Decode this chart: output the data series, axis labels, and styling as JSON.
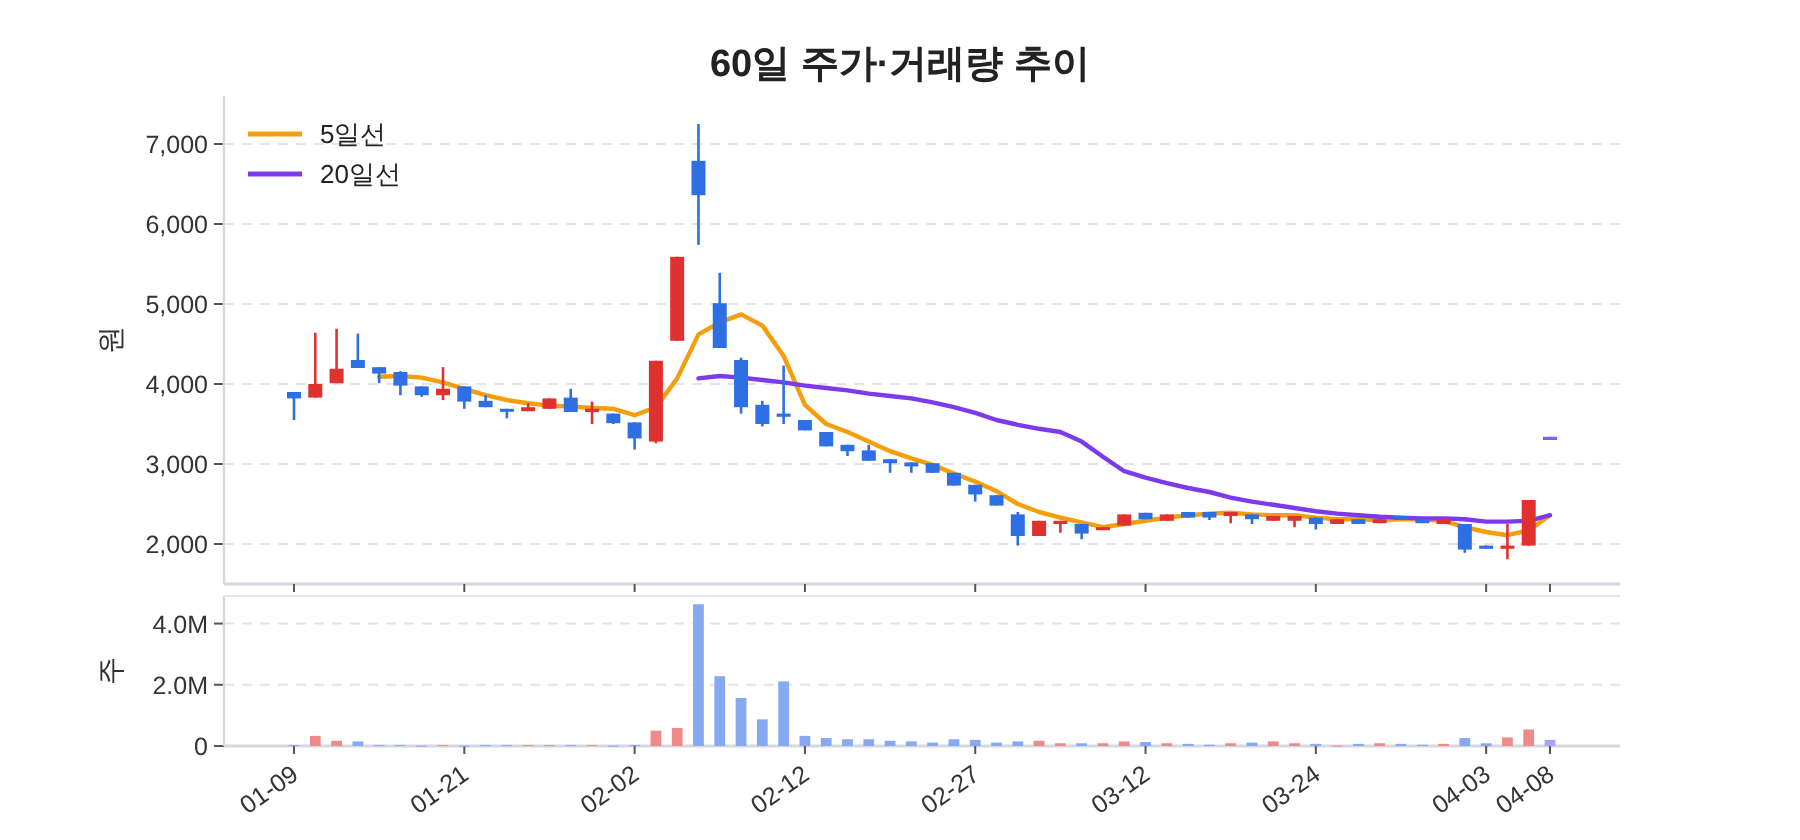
{
  "chart_data": [
    {
      "type": "candlestick",
      "title": "60일 주가·거래량 추이",
      "ylabel": "원",
      "categories": [
        null,
        null,
        null,
        null,
        null,
        null,
        null,
        null,
        null,
        null,
        null,
        null,
        null,
        null,
        null,
        null,
        null,
        null,
        null,
        null,
        null,
        null,
        null,
        null,
        null,
        null,
        null,
        null,
        null,
        null,
        null,
        null,
        null,
        null,
        null,
        null,
        null,
        null,
        null,
        null,
        null,
        null,
        null,
        null,
        null,
        null,
        null,
        null,
        null,
        null,
        null,
        null,
        null,
        null,
        null,
        null,
        null,
        null,
        null,
        null
      ],
      "ohlc": [
        [
          3900,
          3900,
          3550,
          3820
        ],
        [
          3830,
          4640,
          3830,
          4000
        ],
        [
          4010,
          4690,
          4010,
          4190
        ],
        [
          4300,
          4630,
          4200,
          4200
        ],
        [
          4210,
          4210,
          4010,
          4130
        ],
        [
          4150,
          4160,
          3860,
          3980
        ],
        [
          3970,
          3970,
          3840,
          3860
        ],
        [
          3860,
          4210,
          3800,
          3940
        ],
        [
          3970,
          3970,
          3690,
          3780
        ],
        [
          3790,
          3860,
          3710,
          3710
        ],
        [
          3690,
          3690,
          3570,
          3660
        ],
        [
          3660,
          3760,
          3660,
          3710
        ],
        [
          3690,
          3820,
          3690,
          3820
        ],
        [
          3830,
          3940,
          3650,
          3650
        ],
        [
          3650,
          3780,
          3500,
          3690
        ],
        [
          3630,
          3630,
          3500,
          3510
        ],
        [
          3520,
          3520,
          3180,
          3320
        ],
        [
          3280,
          4290,
          3260,
          4290
        ],
        [
          4540,
          5590,
          4540,
          5590
        ],
        [
          6790,
          7250,
          5740,
          6360
        ],
        [
          5010,
          5390,
          4450,
          4450
        ],
        [
          4300,
          4330,
          3630,
          3710
        ],
        [
          3740,
          3790,
          3470,
          3500
        ],
        [
          3630,
          4230,
          3500,
          3590
        ],
        [
          3550,
          3550,
          3420,
          3420
        ],
        [
          3400,
          3400,
          3220,
          3220
        ],
        [
          3240,
          3240,
          3100,
          3160
        ],
        [
          3170,
          3240,
          3040,
          3040
        ],
        [
          3060,
          3060,
          2890,
          3010
        ],
        [
          3020,
          3020,
          2890,
          2970
        ],
        [
          3010,
          3010,
          2890,
          2890
        ],
        [
          2890,
          2890,
          2730,
          2730
        ],
        [
          2740,
          2740,
          2530,
          2620
        ],
        [
          2610,
          2610,
          2480,
          2480
        ],
        [
          2370,
          2400,
          1980,
          2100
        ],
        [
          2100,
          2290,
          2100,
          2290
        ],
        [
          2250,
          2290,
          2140,
          2290
        ],
        [
          2250,
          2250,
          2060,
          2130
        ],
        [
          2180,
          2210,
          2180,
          2210
        ],
        [
          2230,
          2370,
          2230,
          2370
        ],
        [
          2390,
          2390,
          2310,
          2310
        ],
        [
          2290,
          2370,
          2290,
          2370
        ],
        [
          2400,
          2400,
          2330,
          2330
        ],
        [
          2400,
          2400,
          2300,
          2330
        ],
        [
          2350,
          2400,
          2260,
          2400
        ],
        [
          2370,
          2370,
          2250,
          2310
        ],
        [
          2290,
          2350,
          2290,
          2350
        ],
        [
          2290,
          2350,
          2210,
          2350
        ],
        [
          2330,
          2330,
          2180,
          2250
        ],
        [
          2250,
          2310,
          2250,
          2310
        ],
        [
          2310,
          2310,
          2250,
          2250
        ],
        [
          2260,
          2310,
          2260,
          2310
        ],
        [
          2350,
          2350,
          2300,
          2300
        ],
        [
          2310,
          2310,
          2260,
          2260
        ],
        [
          2250,
          2310,
          2250,
          2310
        ],
        [
          2250,
          2250,
          1890,
          1930
        ],
        [
          1980,
          1980,
          1940,
          1940
        ],
        [
          1940,
          2250,
          1810,
          1980
        ],
        [
          1980,
          2550,
          1980,
          2550
        ],
        [
          3340,
          3340,
          3300,
          3300
        ]
      ],
      "colors": [
        "#2f6fe4",
        "#e03131",
        "#e03131",
        "#2f6fe4",
        "#2f6fe4",
        "#2f6fe4",
        "#2f6fe4",
        "#e03131",
        "#2f6fe4",
        "#2f6fe4",
        "#2f6fe4",
        "#e03131",
        "#e03131",
        "#2f6fe4",
        "#e03131",
        "#2f6fe4",
        "#2f6fe4",
        "#e03131",
        "#e03131",
        "#2f6fe4",
        "#2f6fe4",
        "#2f6fe4",
        "#2f6fe4",
        "#2f6fe4",
        "#2f6fe4",
        "#2f6fe4",
        "#2f6fe4",
        "#2f6fe4",
        "#2f6fe4",
        "#2f6fe4",
        "#2f6fe4",
        "#2f6fe4",
        "#2f6fe4",
        "#2f6fe4",
        "#2f6fe4",
        "#e03131",
        "#e03131",
        "#2f6fe4",
        "#e03131",
        "#e03131",
        "#2f6fe4",
        "#e03131",
        "#2f6fe4",
        "#2f6fe4",
        "#e03131",
        "#2f6fe4",
        "#e03131",
        "#e03131",
        "#2f6fe4",
        "#e03131",
        "#2f6fe4",
        "#e03131",
        "#2f6fe4",
        "#2f6fe4",
        "#e03131",
        "#2f6fe4",
        "#2f6fe4",
        "#e03131",
        "#e03131",
        "#6b6bf0"
      ],
      "series": [
        {
          "type": "line",
          "name": "5일선",
          "color": "#f59e0b",
          "values": [
            null,
            null,
            null,
            null,
            4090,
            4100,
            4080,
            4020,
            3940,
            3860,
            3800,
            3760,
            3730,
            3720,
            3700,
            3690,
            3610,
            3710,
            4070,
            4620,
            4770,
            4870,
            4730,
            4350,
            3740,
            3500,
            3400,
            3280,
            3160,
            3070,
            2990,
            2880,
            2780,
            2660,
            2500,
            2400,
            2330,
            2270,
            2210,
            2250,
            2290,
            2330,
            2360,
            2380,
            2390,
            2370,
            2360,
            2360,
            2330,
            2310,
            2310,
            2300,
            2310,
            2310,
            2290,
            2210,
            2150,
            2110,
            2170,
            2360
          ]
        },
        {
          "type": "line",
          "name": "20일선",
          "color": "#7c3aed",
          "values": [
            null,
            null,
            null,
            null,
            null,
            null,
            null,
            null,
            null,
            null,
            null,
            null,
            null,
            null,
            null,
            null,
            null,
            null,
            null,
            4070,
            4100,
            4080,
            4050,
            4020,
            3980,
            3950,
            3920,
            3880,
            3850,
            3820,
            3770,
            3710,
            3640,
            3550,
            3490,
            3440,
            3400,
            3280,
            3090,
            2910,
            2830,
            2760,
            2700,
            2650,
            2580,
            2530,
            2490,
            2450,
            2410,
            2380,
            2360,
            2340,
            2330,
            2320,
            2320,
            2310,
            2280,
            2280,
            2290,
            2360
          ]
        }
      ],
      "ylim": [
        1500,
        7600
      ],
      "yticks": [
        {
          "value": 2000,
          "label": "2,000"
        },
        {
          "value": 3000,
          "label": "3,000"
        },
        {
          "value": 4000,
          "label": "4,000"
        },
        {
          "value": 5000,
          "label": "5,000"
        },
        {
          "value": 6000,
          "label": "6,000"
        },
        {
          "value": 7000,
          "label": "7,000"
        }
      ],
      "grid": "y",
      "legend": "top left"
    },
    {
      "type": "bar",
      "ylabel": "주",
      "categories": [
        "01-09",
        null,
        null,
        null,
        null,
        null,
        null,
        null,
        "01-21",
        null,
        null,
        null,
        null,
        null,
        null,
        null,
        "02-02",
        null,
        null,
        null,
        null,
        null,
        null,
        null,
        "02-12",
        null,
        null,
        null,
        null,
        null,
        null,
        null,
        "02-27",
        null,
        null,
        null,
        null,
        null,
        null,
        null,
        "03-12",
        null,
        null,
        null,
        null,
        null,
        null,
        null,
        "03-24",
        null,
        null,
        null,
        null,
        null,
        null,
        null,
        "04-03",
        null,
        null,
        "04-08"
      ],
      "values": [
        30000,
        330000,
        170000,
        150000,
        30000,
        30000,
        10000,
        30000,
        10000,
        30000,
        30000,
        30000,
        30000,
        30000,
        30000,
        10000,
        30000,
        500000,
        590000,
        4630000,
        2280000,
        1570000,
        870000,
        2110000,
        330000,
        260000,
        220000,
        220000,
        170000,
        150000,
        110000,
        220000,
        200000,
        110000,
        150000,
        170000,
        90000,
        90000,
        90000,
        150000,
        130000,
        90000,
        70000,
        40000,
        90000,
        110000,
        150000,
        90000,
        70000,
        10000,
        70000,
        90000,
        70000,
        40000,
        70000,
        260000,
        90000,
        280000,
        540000,
        200000
      ],
      "colors": [
        "#87a9f1",
        "#ef8a8a",
        "#ef8a8a",
        "#87a9f1",
        "#87a9f1",
        "#87a9f1",
        "#87a9f1",
        "#ef8a8a",
        "#87a9f1",
        "#87a9f1",
        "#87a9f1",
        "#ef8a8a",
        "#ef8a8a",
        "#87a9f1",
        "#ef8a8a",
        "#87a9f1",
        "#87a9f1",
        "#ef8a8a",
        "#ef8a8a",
        "#87a9f1",
        "#87a9f1",
        "#87a9f1",
        "#87a9f1",
        "#87a9f1",
        "#87a9f1",
        "#87a9f1",
        "#87a9f1",
        "#87a9f1",
        "#87a9f1",
        "#87a9f1",
        "#87a9f1",
        "#87a9f1",
        "#87a9f1",
        "#87a9f1",
        "#87a9f1",
        "#ef8a8a",
        "#ef8a8a",
        "#87a9f1",
        "#ef8a8a",
        "#ef8a8a",
        "#87a9f1",
        "#ef8a8a",
        "#87a9f1",
        "#87a9f1",
        "#ef8a8a",
        "#87a9f1",
        "#ef8a8a",
        "#ef8a8a",
        "#87a9f1",
        "#ef8a8a",
        "#87a9f1",
        "#ef8a8a",
        "#87a9f1",
        "#87a9f1",
        "#ef8a8a",
        "#87a9f1",
        "#87a9f1",
        "#ef8a8a",
        "#ef8a8a",
        "#a9a4f5"
      ],
      "ylim": [
        0,
        4900000
      ],
      "yticks": [
        0,
        {
          "value": 2000000,
          "label": "2.0M"
        },
        {
          "value": 4000000,
          "label": "4.0M"
        }
      ],
      "grid": "y"
    }
  ]
}
